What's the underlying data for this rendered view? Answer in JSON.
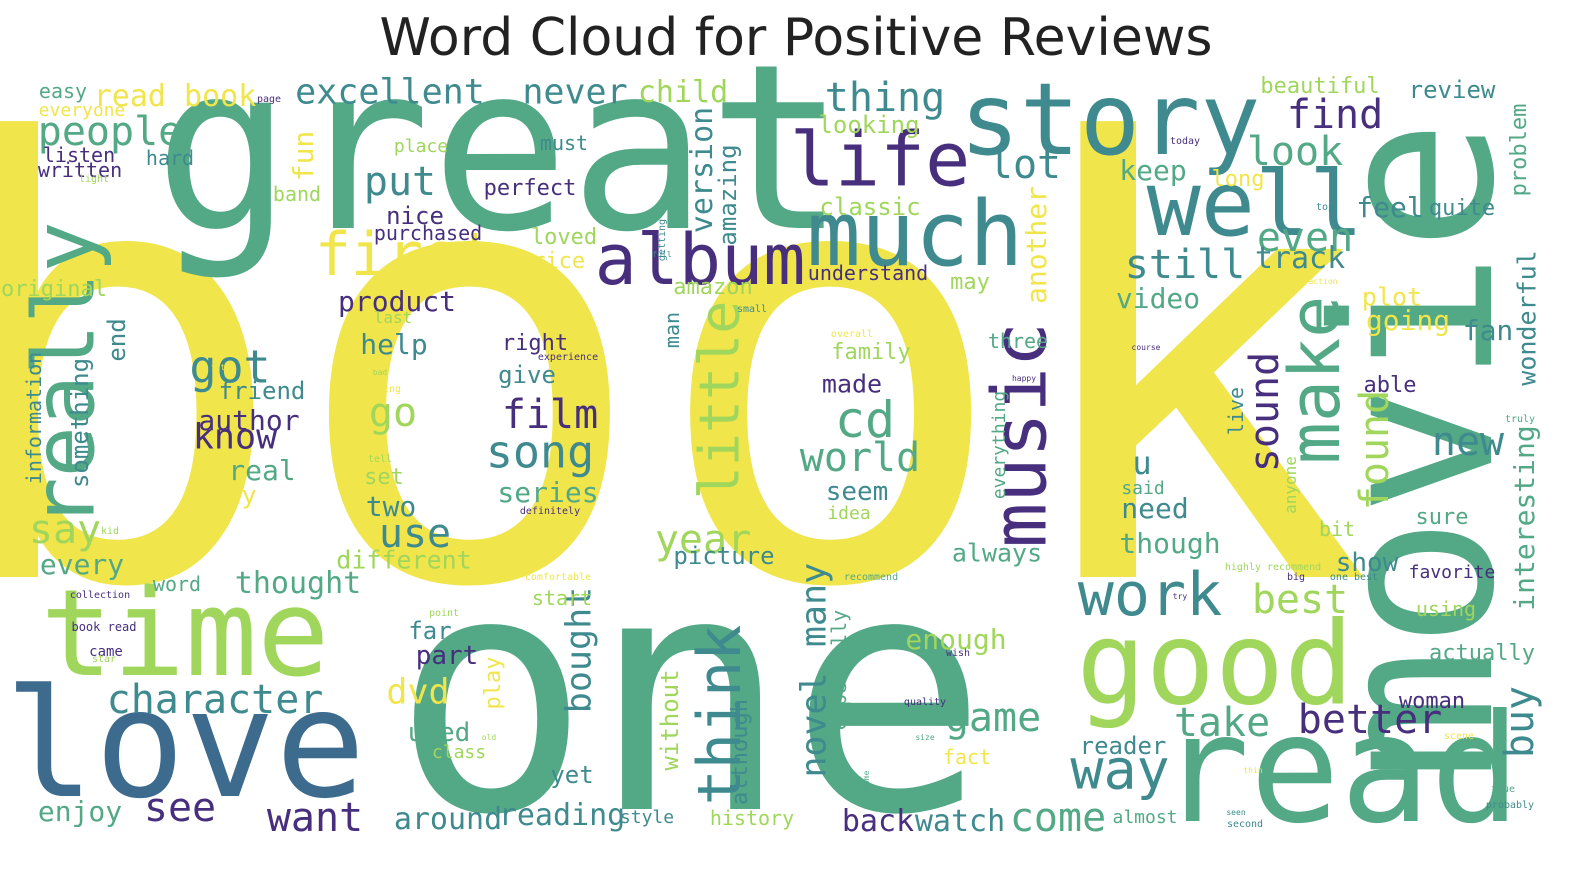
{
  "title": "Word Cloud for Positive Reviews",
  "words": [
    {
      "text": "book",
      "color": "#f0e54b"
    },
    {
      "text": "one",
      "color": "#53a886"
    },
    {
      "text": "great",
      "color": "#53a886"
    },
    {
      "text": "movie",
      "color": "#53a886"
    },
    {
      "text": "read",
      "color": "#53a886"
    },
    {
      "text": "love",
      "color": "#3d6b8e"
    },
    {
      "text": "time",
      "color": "#a0d65b"
    },
    {
      "text": "good",
      "color": "#a0d65b"
    },
    {
      "text": "story",
      "color": "#3e8a8e"
    },
    {
      "text": "well",
      "color": "#3e8a8e"
    },
    {
      "text": "much",
      "color": "#3e8a8e"
    },
    {
      "text": "really",
      "color": "#53a886"
    },
    {
      "text": "life",
      "color": "#472f7d"
    },
    {
      "text": "album",
      "color": "#472f7d"
    },
    {
      "text": "music",
      "color": "#472f7d"
    },
    {
      "text": "make",
      "color": "#53a886"
    },
    {
      "text": "first",
      "color": "#f0e54b"
    },
    {
      "text": "work",
      "color": "#3e8a8e"
    },
    {
      "text": "think",
      "color": "#3e8a8e"
    },
    {
      "text": "little",
      "color": "#a0d65b"
    },
    {
      "text": "way",
      "color": "#3e8a8e"
    },
    {
      "text": "character",
      "color": "#3e8a8e"
    },
    {
      "text": "cd",
      "color": "#53a886"
    },
    {
      "text": "world",
      "color": "#53a886"
    },
    {
      "text": "song",
      "color": "#3e8a8e"
    },
    {
      "text": "film",
      "color": "#472f7d"
    },
    {
      "text": "still",
      "color": "#3e8a8e"
    },
    {
      "text": "thing",
      "color": "#3e8a8e"
    },
    {
      "text": "lot",
      "color": "#3e8a8e"
    },
    {
      "text": "look",
      "color": "#53a886"
    },
    {
      "text": "find",
      "color": "#472f7d"
    },
    {
      "text": "even",
      "color": "#53a886"
    },
    {
      "text": "people",
      "color": "#53a886"
    },
    {
      "text": "excellent",
      "color": "#3e8a8e"
    },
    {
      "text": "never",
      "color": "#3e8a8e"
    },
    {
      "text": "put",
      "color": "#3e8a8e"
    },
    {
      "text": "got",
      "color": "#3e8a8e"
    },
    {
      "text": "know",
      "color": "#472f7d"
    },
    {
      "text": "go",
      "color": "#a0d65b"
    },
    {
      "text": "say",
      "color": "#a0d65b"
    },
    {
      "text": "use",
      "color": "#3e8a8e"
    },
    {
      "text": "see",
      "color": "#472f7d"
    },
    {
      "text": "want",
      "color": "#472f7d"
    },
    {
      "text": "year",
      "color": "#a0d65b"
    },
    {
      "text": "dvd",
      "color": "#f0e54b"
    },
    {
      "text": "bought",
      "color": "#3e8a8e"
    },
    {
      "text": "novel",
      "color": "#3e8a8e"
    },
    {
      "text": "many",
      "color": "#3e8a8e"
    },
    {
      "text": "game",
      "color": "#53a886"
    },
    {
      "text": "take",
      "color": "#53a886"
    },
    {
      "text": "better",
      "color": "#472f7d"
    },
    {
      "text": "best",
      "color": "#a0d65b"
    },
    {
      "text": "new",
      "color": "#3e8a8e"
    },
    {
      "text": "sound",
      "color": "#472f7d"
    },
    {
      "text": "found",
      "color": "#a0d65b"
    },
    {
      "text": "buy",
      "color": "#3e8a8e"
    },
    {
      "text": "come",
      "color": "#53a886"
    },
    {
      "text": "reading",
      "color": "#3e8a8e"
    },
    {
      "text": "around",
      "color": "#3e8a8e"
    },
    {
      "text": "watch",
      "color": "#3e8a8e"
    },
    {
      "text": "back",
      "color": "#472f7d"
    },
    {
      "text": "enjoy",
      "color": "#53a886"
    },
    {
      "text": "thought",
      "color": "#53a886"
    },
    {
      "text": "every",
      "color": "#53a886"
    },
    {
      "text": "author",
      "color": "#472f7d"
    },
    {
      "text": "real",
      "color": "#53a886"
    },
    {
      "text": "day",
      "color": "#f0e54b"
    },
    {
      "text": "help",
      "color": "#3e8a8e"
    },
    {
      "text": "product",
      "color": "#472f7d"
    },
    {
      "text": "friend",
      "color": "#3e8a8e"
    },
    {
      "text": "nice",
      "color": "#472f7d"
    },
    {
      "text": "perfect",
      "color": "#472f7d"
    },
    {
      "text": "purchased",
      "color": "#472f7d"
    },
    {
      "text": "version",
      "color": "#3e8a8e"
    },
    {
      "text": "amazing",
      "color": "#3e8a8e"
    },
    {
      "text": "child",
      "color": "#a0d65b"
    },
    {
      "text": "read book",
      "color": "#f0e54b"
    },
    {
      "text": "fun",
      "color": "#f0e54b"
    },
    {
      "text": "easy",
      "color": "#53a886"
    },
    {
      "text": "everyone",
      "color": "#f0e54b"
    },
    {
      "text": "listen",
      "color": "#472f7d"
    },
    {
      "text": "written",
      "color": "#472f7d"
    },
    {
      "text": "hard",
      "color": "#3e8a8e"
    },
    {
      "text": "band",
      "color": "#a0d65b"
    },
    {
      "text": "place",
      "color": "#a0d65b"
    },
    {
      "text": "must",
      "color": "#3e8a8e"
    },
    {
      "text": "loved",
      "color": "#a0d65b"
    },
    {
      "text": "price",
      "color": "#f0e54b"
    },
    {
      "text": "classic",
      "color": "#a0d65b"
    },
    {
      "text": "looking",
      "color": "#a0d65b"
    },
    {
      "text": "keep",
      "color": "#53a886"
    },
    {
      "text": "long",
      "color": "#f0e54b"
    },
    {
      "text": "beautiful",
      "color": "#a0d65b"
    },
    {
      "text": "review",
      "color": "#3e8a8e"
    },
    {
      "text": "problem",
      "color": "#53a886"
    },
    {
      "text": "feel",
      "color": "#3e8a8e"
    },
    {
      "text": "quite",
      "color": "#3e8a8e"
    },
    {
      "text": "track",
      "color": "#3e8a8e"
    },
    {
      "text": "video",
      "color": "#53a886"
    },
    {
      "text": "understand",
      "color": "#472f7d"
    },
    {
      "text": "may",
      "color": "#a0d65b"
    },
    {
      "text": "another",
      "color": "#f0e54b"
    },
    {
      "text": "amazon",
      "color": "#a0d65b"
    },
    {
      "text": "original",
      "color": "#a0d65b"
    },
    {
      "text": "last",
      "color": "#a0d65b"
    },
    {
      "text": "plot",
      "color": "#f0e54b"
    },
    {
      "text": "going",
      "color": "#f0e54b"
    },
    {
      "text": "fan",
      "color": "#3e8a8e"
    },
    {
      "text": "wonderful",
      "color": "#3e8a8e"
    },
    {
      "text": "able",
      "color": "#472f7d"
    },
    {
      "text": "right",
      "color": "#472f7d"
    },
    {
      "text": "give",
      "color": "#3e8a8e"
    },
    {
      "text": "man",
      "color": "#3e8a8e"
    },
    {
      "text": "family",
      "color": "#a0d65b"
    },
    {
      "text": "three",
      "color": "#53a886"
    },
    {
      "text": "made",
      "color": "#472f7d"
    },
    {
      "text": "information",
      "color": "#3e8a8e"
    },
    {
      "text": "something",
      "color": "#3e8a8e"
    },
    {
      "text": "end",
      "color": "#3e8a8e"
    },
    {
      "text": "set",
      "color": "#a0d65b"
    },
    {
      "text": "two",
      "color": "#3e8a8e"
    },
    {
      "text": "series",
      "color": "#53a886"
    },
    {
      "text": "seem",
      "color": "#3e8a8e"
    },
    {
      "text": "idea",
      "color": "#a0d65b"
    },
    {
      "text": "u",
      "color": "#3e8a8e"
    },
    {
      "text": "said",
      "color": "#53a886"
    },
    {
      "text": "need",
      "color": "#3e8a8e"
    },
    {
      "text": "though",
      "color": "#53a886"
    },
    {
      "text": "always",
      "color": "#53a886"
    },
    {
      "text": "everything",
      "color": "#53a886"
    },
    {
      "text": "live",
      "color": "#3e8a8e"
    },
    {
      "text": "anyone",
      "color": "#a0d65b"
    },
    {
      "text": "bit",
      "color": "#a0d65b"
    },
    {
      "text": "sure",
      "color": "#53a886"
    },
    {
      "text": "interesting",
      "color": "#53a886"
    },
    {
      "text": "show",
      "color": "#3e8a8e"
    },
    {
      "text": "favorite",
      "color": "#472f7d"
    },
    {
      "text": "using",
      "color": "#a0d65b"
    },
    {
      "text": "actually",
      "color": "#53a886"
    },
    {
      "text": "woman",
      "color": "#472f7d"
    },
    {
      "text": "different",
      "color": "#a0d65b"
    },
    {
      "text": "picture",
      "color": "#3e8a8e"
    },
    {
      "text": "word",
      "color": "#53a886"
    },
    {
      "text": "enough",
      "color": "#a0d65b"
    },
    {
      "text": "start",
      "color": "#a0d65b"
    },
    {
      "text": "far",
      "color": "#3e8a8e"
    },
    {
      "text": "part",
      "color": "#472f7d"
    },
    {
      "text": "play",
      "color": "#f0e54b"
    },
    {
      "text": "used",
      "color": "#53a886"
    },
    {
      "text": "class",
      "color": "#a0d65b"
    },
    {
      "text": "yet",
      "color": "#3e8a8e"
    },
    {
      "text": "without",
      "color": "#a0d65b"
    },
    {
      "text": "although",
      "color": "#3e8a8e"
    },
    {
      "text": "especially",
      "color": "#53a886"
    },
    {
      "text": "fact",
      "color": "#f0e54b"
    },
    {
      "text": "reader",
      "color": "#3e8a8e"
    },
    {
      "text": "almost",
      "color": "#53a886"
    },
    {
      "text": "style",
      "color": "#3e8a8e"
    },
    {
      "text": "history",
      "color": "#a0d65b"
    },
    {
      "text": "came",
      "color": "#472f7d"
    },
    {
      "text": "book read",
      "color": "#472f7d"
    },
    {
      "text": "collection",
      "color": "#472f7d"
    },
    {
      "text": "star",
      "color": "#a0d65b"
    },
    {
      "text": "light",
      "color": "#a0d65b"
    },
    {
      "text": "page",
      "color": "#472f7d"
    },
    {
      "text": "today",
      "color": "#472f7d"
    },
    {
      "text": "top",
      "color": "#3e8a8e"
    },
    {
      "text": "getting",
      "color": "#3e8a8e"
    },
    {
      "text": "small",
      "color": "#3e8a8e"
    },
    {
      "text": "fit",
      "color": "#f0e54b"
    },
    {
      "text": "bad",
      "color": "#a0d65b"
    },
    {
      "text": "writing",
      "color": "#f0e54b"
    },
    {
      "text": "experience",
      "color": "#472f7d"
    },
    {
      "text": "overall",
      "color": "#f0e54b"
    },
    {
      "text": "course",
      "color": "#472f7d"
    },
    {
      "text": "happy",
      "color": "#472f7d"
    },
    {
      "text": "action",
      "color": "#f0e54b"
    },
    {
      "text": "truly",
      "color": "#53a886"
    },
    {
      "text": "tell",
      "color": "#a0d65b"
    },
    {
      "text": "kid",
      "color": "#a0d65b"
    },
    {
      "text": "definitely",
      "color": "#472f7d"
    },
    {
      "text": "comfortable",
      "color": "#f0e54b"
    },
    {
      "text": "recommend",
      "color": "#53a886"
    },
    {
      "text": "highly recommend",
      "color": "#a0d65b"
    },
    {
      "text": "one best",
      "color": "#3e8a8e"
    },
    {
      "text": "big",
      "color": "#472f7d"
    },
    {
      "text": "try",
      "color": "#472f7d"
    },
    {
      "text": "point",
      "color": "#a0d65b"
    },
    {
      "text": "wish",
      "color": "#472f7d"
    },
    {
      "text": "quality",
      "color": "#472f7d"
    },
    {
      "text": "size",
      "color": "#53a886"
    },
    {
      "text": "old",
      "color": "#a0d65b"
    },
    {
      "text": "become",
      "color": "#53a886"
    },
    {
      "text": "thin",
      "color": "#f0e54b"
    },
    {
      "text": "scene",
      "color": "#f0e54b"
    },
    {
      "text": "true",
      "color": "#53a886"
    },
    {
      "text": "probably",
      "color": "#3e8a8e"
    },
    {
      "text": "seen",
      "color": "#3e8a8e"
    },
    {
      "text": "second",
      "color": "#3e8a8e"
    },
    {
      "text": "full",
      "color": "#3e8a8e"
    }
  ]
}
